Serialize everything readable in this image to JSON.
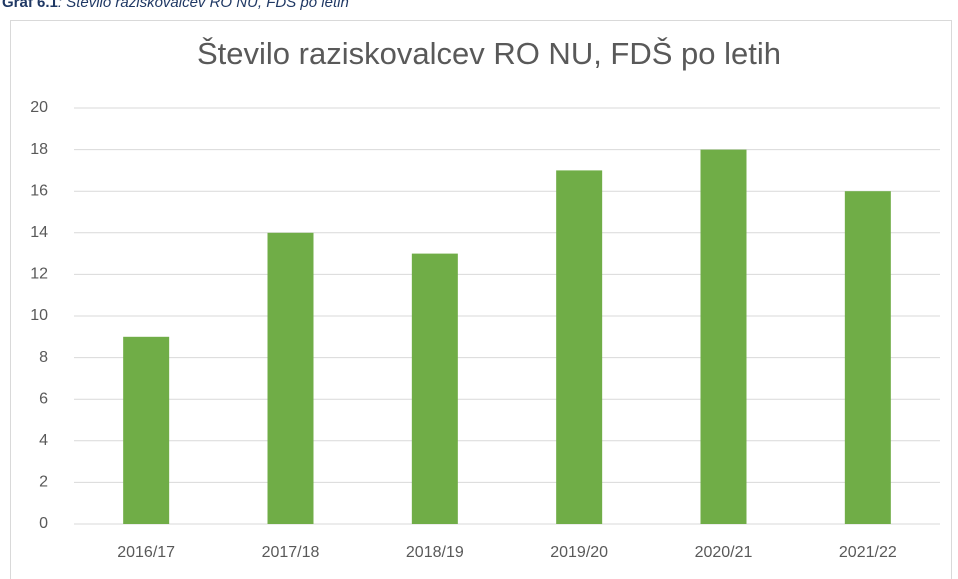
{
  "caption": {
    "label": "Graf 6.1",
    "text": ": Število raziskovalcev RO NU, FDŠ po letih"
  },
  "chart_data": {
    "type": "bar",
    "title": "Število raziskovalcev RO NU, FDŠ po letih",
    "categories": [
      "2016/17",
      "2017/18",
      "2018/19",
      "2019/20",
      "2020/21",
      "2021/22"
    ],
    "values": [
      9,
      14,
      13,
      17,
      18,
      16
    ],
    "color": "#70ad47",
    "ylim": [
      0,
      20
    ],
    "yticks": [
      0,
      2,
      4,
      6,
      8,
      10,
      12,
      14,
      16,
      18,
      20
    ],
    "grid": true
  }
}
